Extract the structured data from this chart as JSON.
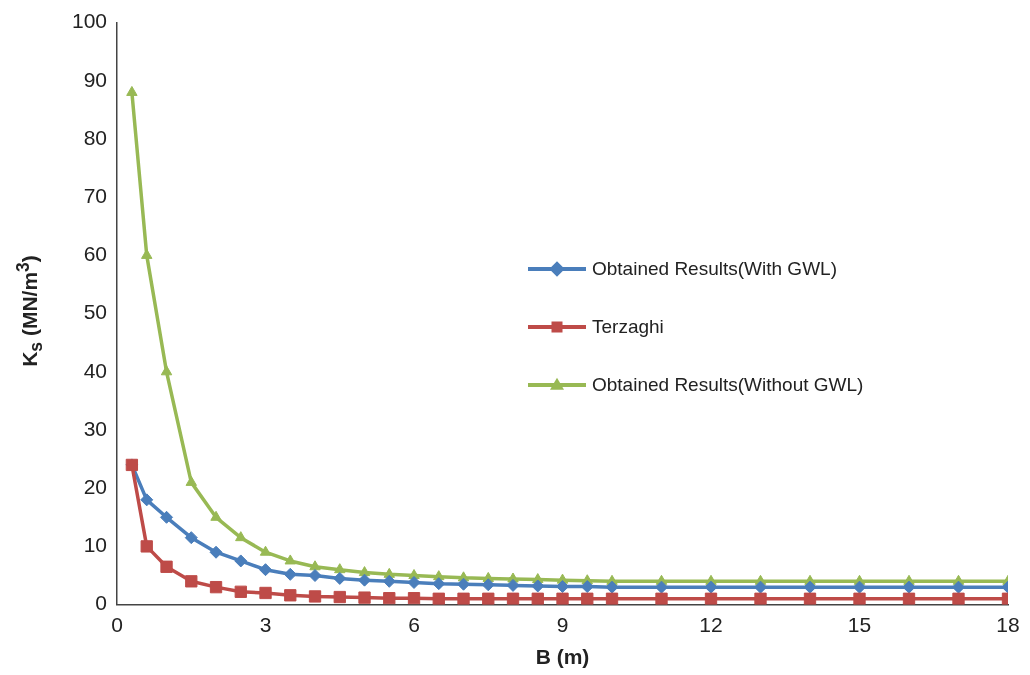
{
  "chart_data": {
    "type": "line",
    "xlabel": "B (m)",
    "ylabel": "K$_{s}$ (MN/m$^{3}$)",
    "x": [
      0.3,
      0.6,
      1,
      1.5,
      2,
      2.5,
      3,
      3.5,
      4,
      4.5,
      5,
      5.5,
      6,
      6.5,
      7,
      7.5,
      8,
      8.5,
      9,
      9.5,
      10,
      11,
      12,
      13,
      14,
      15,
      16,
      17,
      18
    ],
    "series": [
      {
        "name": "Obtained Results(With GWL)",
        "color": "#4a7ebb",
        "marker": "diamond",
        "values": [
          24,
          18,
          15,
          11.5,
          9,
          7.5,
          6,
          5.2,
          5,
          4.5,
          4.2,
          4,
          3.8,
          3.6,
          3.5,
          3.4,
          3.3,
          3.2,
          3.1,
          3.1,
          3,
          3,
          3,
          3,
          3,
          3,
          3,
          3,
          3
        ]
      },
      {
        "name": "Terzaghi",
        "color": "#be4b48",
        "marker": "square",
        "values": [
          24,
          10,
          6.5,
          4,
          3,
          2.2,
          2,
          1.6,
          1.4,
          1.3,
          1.2,
          1.1,
          1.1,
          1,
          1,
          1,
          1,
          1,
          1,
          1,
          1,
          1,
          1,
          1,
          1,
          1,
          1,
          1,
          1
        ]
      },
      {
        "name": "Obtained Results(Without GWL)",
        "color": "#98b954",
        "marker": "triangle",
        "values": [
          88,
          60,
          40,
          21,
          15,
          11.5,
          9,
          7.5,
          6.5,
          6,
          5.5,
          5.2,
          5,
          4.8,
          4.6,
          4.5,
          4.4,
          4.3,
          4.2,
          4.1,
          4,
          4,
          4,
          4,
          4,
          4,
          4,
          4,
          4
        ]
      }
    ],
    "xlim": [
      0,
      18
    ],
    "xticks": [
      0,
      3,
      6,
      9,
      12,
      15,
      18
    ],
    "ylim": [
      0,
      100
    ],
    "yticks": [
      0,
      10,
      20,
      30,
      40,
      50,
      60,
      70,
      80,
      90,
      100
    ],
    "grid": false,
    "legend": "right",
    "line_style": "solid"
  }
}
